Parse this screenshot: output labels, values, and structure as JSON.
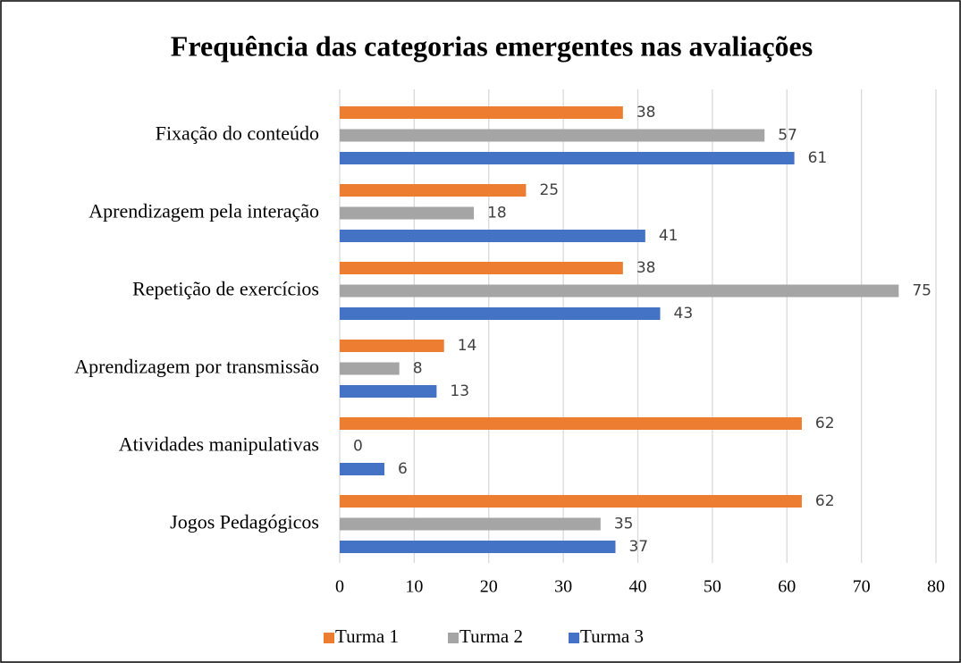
{
  "chart_data": {
    "type": "bar",
    "orientation": "horizontal",
    "title": "Frequência das categorias emergentes nas avaliações",
    "categories": [
      "Fixação do conteúdo",
      "Aprendizagem pela interação",
      "Repetição de exercícios",
      "Aprendizagem por transmissão",
      "Atividades manipulativas",
      "Jogos Pedagógicos"
    ],
    "series": [
      {
        "name": "Turma 1",
        "color": "#ed7d31",
        "values": [
          38,
          25,
          38,
          14,
          62,
          62
        ]
      },
      {
        "name": "Turma 2",
        "color": "#a5a5a5",
        "values": [
          57,
          18,
          75,
          8,
          0,
          35
        ]
      },
      {
        "name": "Turma 3",
        "color": "#4472c4",
        "values": [
          61,
          41,
          43,
          13,
          6,
          37
        ]
      }
    ],
    "xlim": [
      0,
      80
    ],
    "xticks": [
      0,
      10,
      20,
      30,
      40,
      50,
      60,
      70,
      80
    ],
    "grid": true,
    "legend": "bottom"
  }
}
